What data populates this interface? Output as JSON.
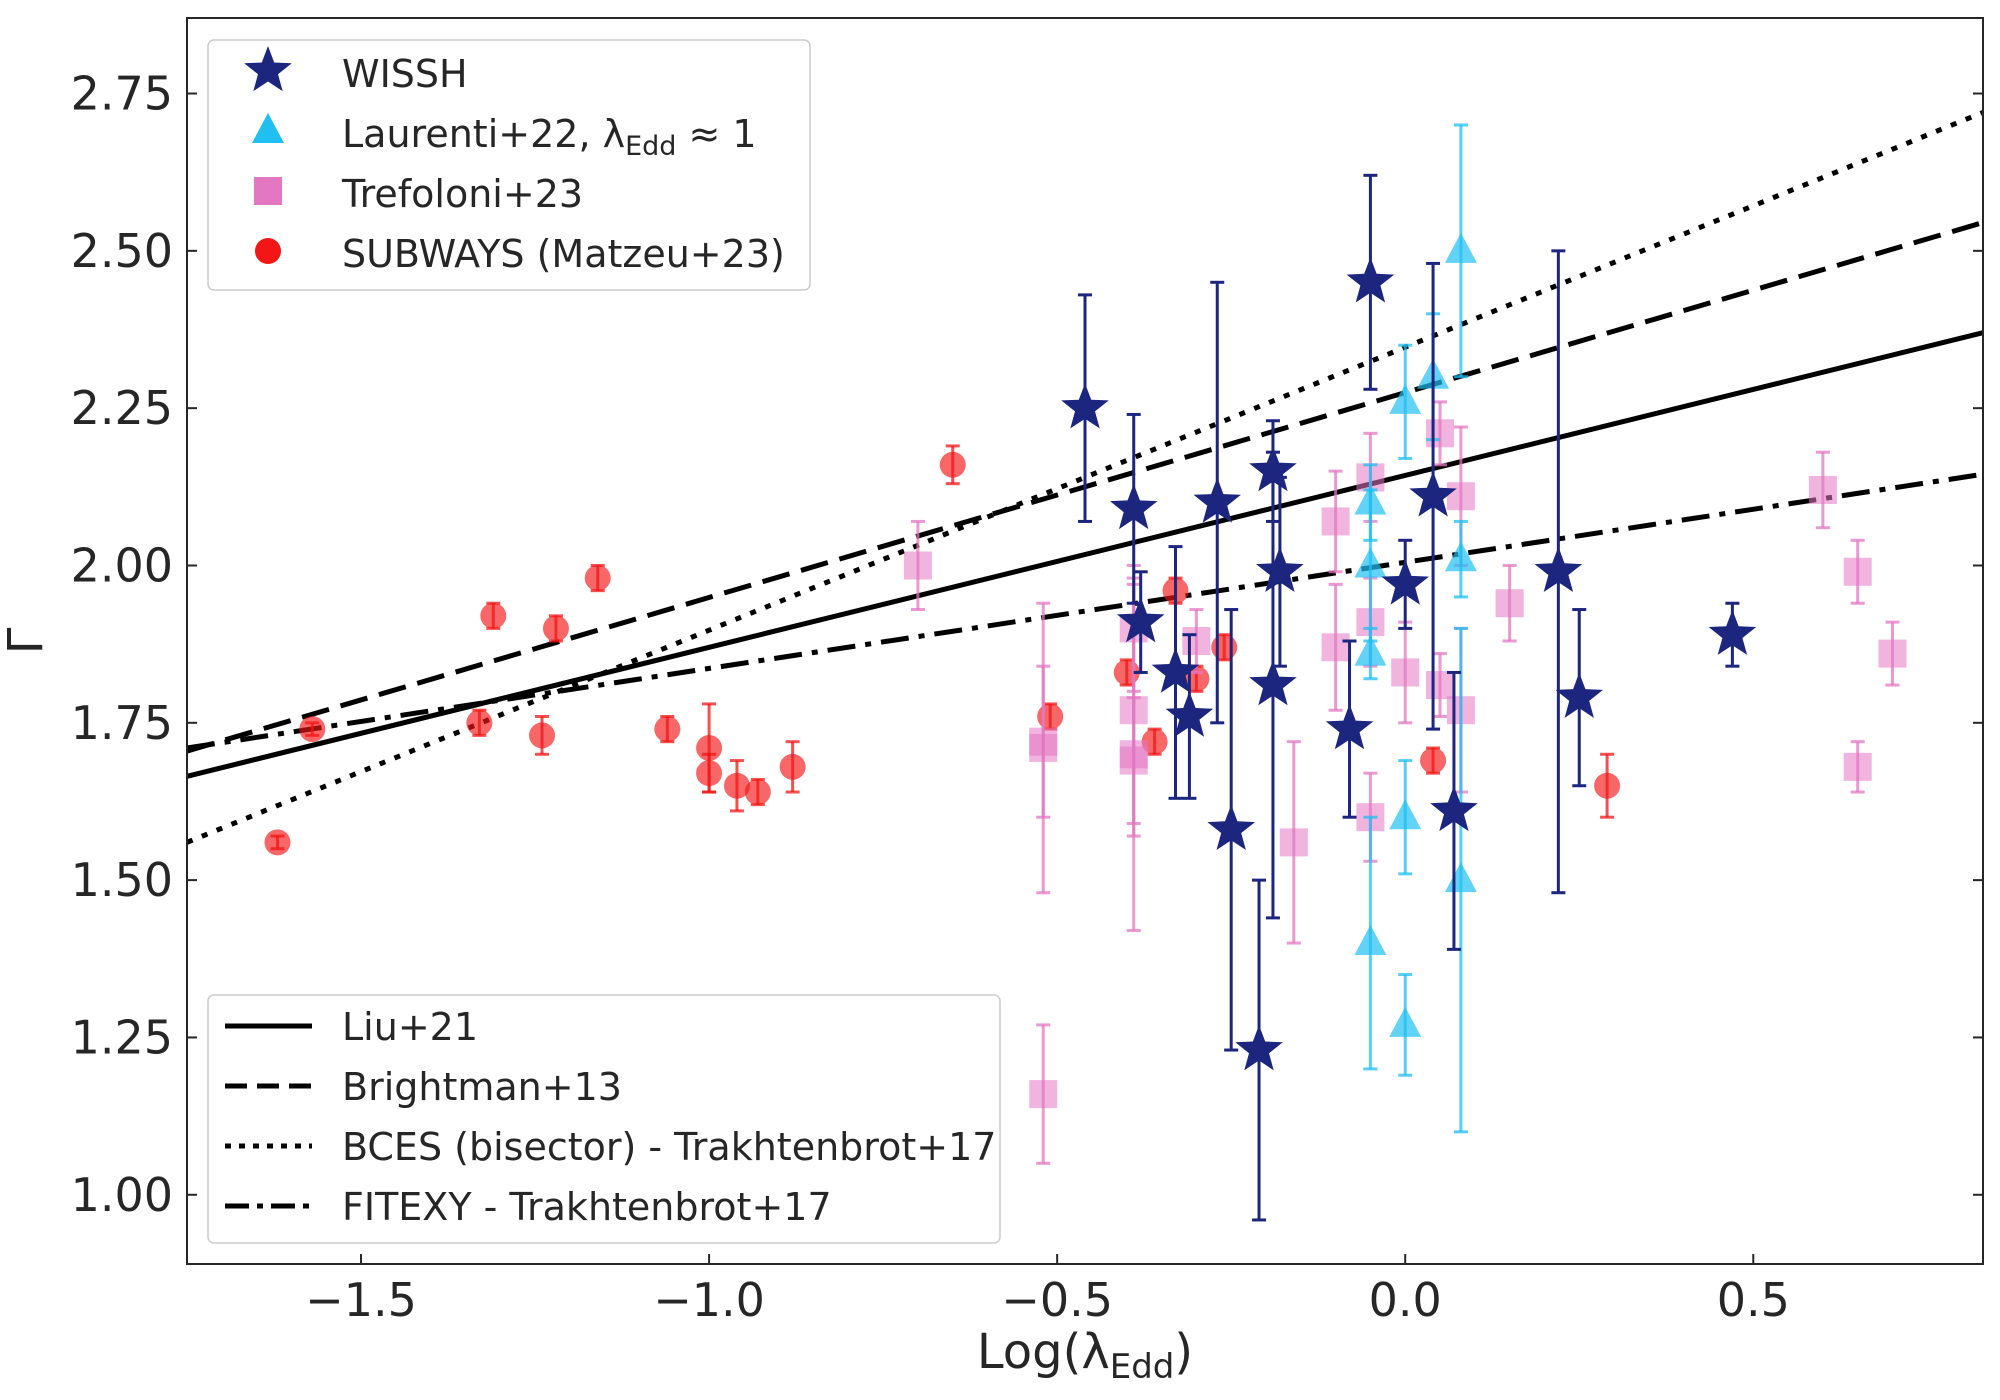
{
  "chart_data": {
    "type": "scatter",
    "xlabel": "Log(λ",
    "xlabel_sub": "Edd",
    "xlabel_close": ")",
    "ylabel": "Γ",
    "xlim": [
      -1.75,
      0.83
    ],
    "ylim": [
      0.89,
      2.87
    ],
    "xticks": [
      -1.5,
      -1.0,
      -0.5,
      0.0,
      0.5
    ],
    "xtick_labels": [
      "−1.5",
      "−1.0",
      "−0.5",
      "0.0",
      "0.5"
    ],
    "yticks": [
      1.0,
      1.25,
      1.5,
      1.75,
      2.0,
      2.25,
      2.5,
      2.75
    ],
    "ytick_labels": [
      "1.00",
      "1.25",
      "1.50",
      "1.75",
      "2.00",
      "2.25",
      "2.50",
      "2.75"
    ],
    "series": [
      {
        "name": "SUBWAYS (Matzeu+23)",
        "marker": "circle",
        "color": "#f21616",
        "points": [
          {
            "x": -1.62,
            "y": 1.56,
            "err": 0.01
          },
          {
            "x": -1.57,
            "y": 1.74,
            "err": 0.01
          },
          {
            "x": -1.33,
            "y": 1.75,
            "err": 0.02
          },
          {
            "x": -1.31,
            "y": 1.92,
            "err": 0.02
          },
          {
            "x": -1.24,
            "y": 1.73,
            "err": 0.03
          },
          {
            "x": -1.22,
            "y": 1.9,
            "err": 0.02
          },
          {
            "x": -1.16,
            "y": 1.98,
            "err": 0.02
          },
          {
            "x": -1.06,
            "y": 1.74,
            "err": 0.02
          },
          {
            "x": -1.0,
            "y": 1.71,
            "err": 0.07
          },
          {
            "x": -1.0,
            "y": 1.67,
            "err": 0.03
          },
          {
            "x": -0.96,
            "y": 1.65,
            "err": 0.04
          },
          {
            "x": -0.93,
            "y": 1.64,
            "err": 0.02
          },
          {
            "x": -0.88,
            "y": 1.68,
            "err": 0.04
          },
          {
            "x": -0.65,
            "y": 2.16,
            "err": 0.03
          },
          {
            "x": -0.51,
            "y": 1.76,
            "err": 0.02
          },
          {
            "x": -0.4,
            "y": 1.83,
            "err": 0.02
          },
          {
            "x": -0.36,
            "y": 1.72,
            "err": 0.02
          },
          {
            "x": -0.33,
            "y": 1.96,
            "err": 0.02
          },
          {
            "x": -0.3,
            "y": 1.82,
            "err": 0.02
          },
          {
            "x": -0.26,
            "y": 1.87,
            "err": 0.02
          },
          {
            "x": 0.04,
            "y": 1.69,
            "err": 0.02
          },
          {
            "x": 0.29,
            "y": 1.65,
            "err": 0.05
          }
        ]
      },
      {
        "name": "Trefoloni+23",
        "marker": "square",
        "color": "#e377c2",
        "points": [
          {
            "x": -0.7,
            "y": 2.0,
            "err": 0.07
          },
          {
            "x": -0.52,
            "y": 1.72,
            "err": 0.12
          },
          {
            "x": -0.52,
            "y": 1.71,
            "err": 0.23
          },
          {
            "x": -0.52,
            "y": 1.16,
            "err": 0.11
          },
          {
            "x": -0.39,
            "y": 1.9,
            "err": 0.1
          },
          {
            "x": -0.39,
            "y": 1.77,
            "err": 0.2
          },
          {
            "x": -0.39,
            "y": 1.7,
            "err": 0.28
          },
          {
            "x": -0.39,
            "y": 1.69,
            "err": 0.1
          },
          {
            "x": -0.3,
            "y": 1.88,
            "err": 0.05
          },
          {
            "x": -0.16,
            "y": 1.56,
            "err": 0.16
          },
          {
            "x": -0.1,
            "y": 2.07,
            "err": 0.08
          },
          {
            "x": -0.1,
            "y": 1.87,
            "err": 0.1
          },
          {
            "x": -0.05,
            "y": 2.14,
            "err": 0.07
          },
          {
            "x": -0.05,
            "y": 1.91,
            "err": 0.07
          },
          {
            "x": -0.05,
            "y": 1.6,
            "err": 0.07
          },
          {
            "x": 0.0,
            "y": 1.83,
            "err": 0.08
          },
          {
            "x": 0.05,
            "y": 2.21,
            "err": 0.05
          },
          {
            "x": 0.05,
            "y": 1.81,
            "err": 0.05
          },
          {
            "x": 0.08,
            "y": 2.11,
            "err": 0.11
          },
          {
            "x": 0.08,
            "y": 1.77,
            "err": 0.13
          },
          {
            "x": 0.15,
            "y": 1.94,
            "err": 0.06
          },
          {
            "x": 0.6,
            "y": 2.12,
            "err": 0.06
          },
          {
            "x": 0.65,
            "y": 1.99,
            "err": 0.05
          },
          {
            "x": 0.65,
            "y": 1.68,
            "err": 0.04
          },
          {
            "x": 0.7,
            "y": 1.86,
            "err": 0.05
          }
        ]
      },
      {
        "name": "Laurenti+22, λ",
        "name_sub": "Edd",
        "name_tail": " ≈ 1",
        "marker": "triangle",
        "color": "#1fbff2",
        "points": [
          {
            "x": -0.05,
            "y": 2.1,
            "err": 0.06
          },
          {
            "x": -0.05,
            "y": 2.0,
            "err": 0.12
          },
          {
            "x": -0.05,
            "y": 1.86,
            "err": 0.04
          },
          {
            "x": -0.05,
            "y": 1.4,
            "err": 0.2
          },
          {
            "x": 0.0,
            "y": 2.26,
            "err": 0.09
          },
          {
            "x": 0.0,
            "y": 1.6,
            "err": 0.09
          },
          {
            "x": 0.0,
            "y": 1.27,
            "err": 0.08
          },
          {
            "x": 0.04,
            "y": 2.3,
            "err": 0.1
          },
          {
            "x": 0.08,
            "y": 2.5,
            "err": 0.2
          },
          {
            "x": 0.08,
            "y": 2.01,
            "err": 0.06
          },
          {
            "x": 0.08,
            "y": 1.5,
            "err": 0.4
          }
        ]
      },
      {
        "name": "WISSH",
        "marker": "star",
        "color": "#1c267f",
        "points": [
          {
            "x": -0.46,
            "y": 2.25,
            "err": 0.18
          },
          {
            "x": -0.39,
            "y": 2.09,
            "err": 0.15
          },
          {
            "x": -0.38,
            "y": 1.91,
            "err": 0.08
          },
          {
            "x": -0.33,
            "y": 1.83,
            "err": 0.2
          },
          {
            "x": -0.31,
            "y": 1.76,
            "err": 0.13
          },
          {
            "x": -0.27,
            "y": 2.1,
            "err": 0.35
          },
          {
            "x": -0.25,
            "y": 1.58,
            "err": 0.35
          },
          {
            "x": -0.21,
            "y": 1.23,
            "err": 0.27
          },
          {
            "x": -0.19,
            "y": 2.15,
            "err": 0.08
          },
          {
            "x": -0.18,
            "y": 1.99,
            "err": 0.15
          },
          {
            "x": -0.19,
            "y": 1.81,
            "err": 0.37
          },
          {
            "x": -0.08,
            "y": 1.74,
            "err": 0.14
          },
          {
            "x": -0.05,
            "y": 2.45,
            "err": 0.17
          },
          {
            "x": 0.0,
            "y": 1.97,
            "err": 0.07
          },
          {
            "x": 0.04,
            "y": 2.11,
            "err": 0.37
          },
          {
            "x": 0.07,
            "y": 1.61,
            "err": 0.22
          },
          {
            "x": 0.22,
            "y": 1.99,
            "err": 0.51
          },
          {
            "x": 0.25,
            "y": 1.79,
            "err": 0.14
          },
          {
            "x": 0.47,
            "y": 1.89,
            "err": 0.05
          }
        ]
      }
    ],
    "lines": [
      {
        "name": "Liu+21",
        "style": "solid",
        "x": [
          -1.75,
          0.83
        ],
        "y": [
          1.665,
          2.37
        ]
      },
      {
        "name": "Brightman+13",
        "style": "dashed",
        "x": [
          -1.75,
          0.83
        ],
        "y": [
          1.705,
          2.545
        ]
      },
      {
        "name": "BCES (bisector) - Trakhtenbrot+17",
        "style": "dotted",
        "x": [
          -1.75,
          0.83
        ],
        "y": [
          1.56,
          2.72
        ]
      },
      {
        "name": "FITEXY - Trakhtenbrot+17",
        "style": "dashdot",
        "x": [
          -1.75,
          0.83
        ],
        "y": [
          1.71,
          2.145
        ]
      }
    ],
    "legend_markers": {
      "position": "top-left",
      "order": [
        "WISSH",
        "Laurenti+22, λ",
        "Trefoloni+23",
        "SUBWAYS (Matzeu+23)"
      ]
    },
    "legend_lines": {
      "position": "bottom-left",
      "order": [
        "Liu+21",
        "Brightman+13",
        "BCES (bisector) - Trakhtenbrot+17",
        "FITEXY - Trakhtenbrot+17"
      ]
    }
  }
}
